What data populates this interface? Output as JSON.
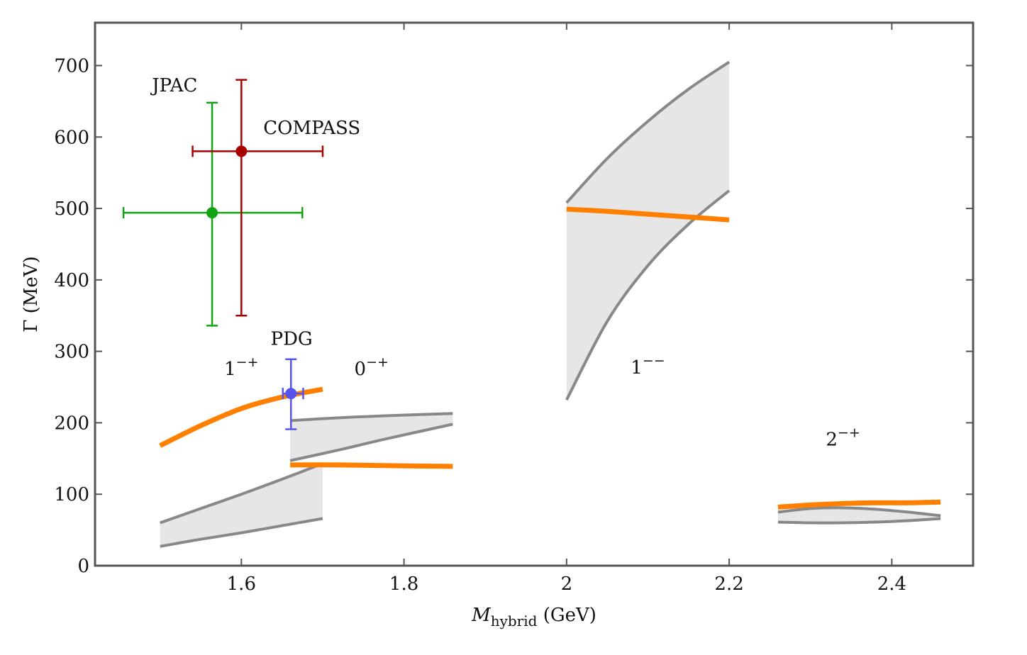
{
  "chart_data": {
    "type": "area",
    "xlabel": {
      "main": "M",
      "sub": "hybrid",
      "unit": " (GeV)"
    },
    "ylabel": "Γ (MeV)",
    "xlim": [
      1.42,
      2.5
    ],
    "ylim": [
      0,
      760
    ],
    "xticks": [
      1.6,
      1.8,
      2,
      2.2,
      2.4
    ],
    "xtick_labels": [
      "1.6",
      "1.8",
      "2",
      "2.2",
      "2.4"
    ],
    "yticks": [
      0,
      100,
      200,
      300,
      400,
      500,
      600,
      700
    ],
    "ytick_labels": [
      "0",
      "100",
      "200",
      "300",
      "400",
      "500",
      "600",
      "700"
    ],
    "grid": false,
    "colors": {
      "band_fill": "#e6e6e6",
      "band_edge": "#888888",
      "central": "#ff8000",
      "jpac": "#12a312",
      "compass": "#a80000",
      "pdg": "#5555ee"
    },
    "bands": [
      {
        "name": "1-+",
        "label": {
          "base": "1",
          "sup": "−+"
        },
        "label_pos": [
          1.6,
          267
        ],
        "x": [
          1.5,
          1.55,
          1.6,
          1.65,
          1.7
        ],
        "upper": [
          60,
          80,
          100,
          121,
          143
        ],
        "lower": [
          27,
          37,
          46,
          56,
          66
        ],
        "central": [
          168,
          196,
          220,
          236,
          247
        ]
      },
      {
        "name": "0-+",
        "label": {
          "base": "0",
          "sup": "−+"
        },
        "label_pos": [
          1.76,
          267
        ],
        "x": [
          1.66,
          1.72,
          1.78,
          1.86
        ],
        "upper": [
          203,
          207,
          210,
          213
        ],
        "lower": [
          147,
          162,
          178,
          198
        ],
        "central": [
          141,
          141,
          140,
          139
        ]
      },
      {
        "name": "1--",
        "label": {
          "base": "1",
          "sup": "−−"
        },
        "label_pos": [
          2.1,
          269
        ],
        "x": [
          2.0,
          2.05,
          2.1,
          2.15,
          2.2
        ],
        "upper": [
          508,
          570,
          622,
          667,
          705
        ],
        "lower": [
          232,
          342,
          420,
          478,
          525
        ],
        "central": [
          499,
          496,
          492,
          488,
          484
        ]
      },
      {
        "name": "2-+",
        "label": {
          "base": "2",
          "sup": "−+"
        },
        "label_pos": [
          2.34,
          168
        ],
        "x": [
          2.26,
          2.3,
          2.34,
          2.38,
          2.42,
          2.46
        ],
        "upper": [
          75,
          80,
          81,
          79,
          75,
          70
        ],
        "lower": [
          61,
          60,
          60,
          61,
          63,
          66
        ],
        "central": [
          82,
          85,
          87,
          88,
          88,
          89
        ]
      }
    ],
    "points": [
      {
        "name": "JPAC",
        "x": 1.564,
        "y": 494,
        "xerr": [
          0.109,
          0.111
        ],
        "yerr": [
          158,
          154
        ],
        "label": "JPAC",
        "label_pos": [
          1.49,
          664
        ]
      },
      {
        "name": "COMPASS",
        "x": 1.6,
        "y": 580,
        "xerr": [
          0.06,
          0.1
        ],
        "yerr": [
          230,
          100
        ],
        "label": "COMPASS",
        "label_pos": [
          1.627,
          604
        ]
      },
      {
        "name": "PDG",
        "x": 1.661,
        "y": 241,
        "xerr": [
          0.01,
          0.015
        ],
        "yerr": [
          50,
          48
        ],
        "label": "PDG",
        "label_pos": [
          1.636,
          309
        ]
      }
    ]
  }
}
